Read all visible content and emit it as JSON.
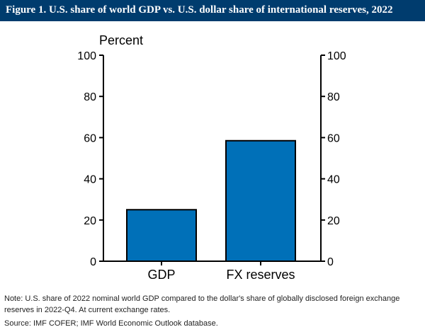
{
  "figure": {
    "title": "Figure 1. U.S. share of world GDP vs. U.S. dollar share of international reserves, 2022",
    "note": "Note: U.S. share of 2022 nominal world GDP compared to the dollar's share of globally disclosed foreign exchange reserves in 2022-Q4. At current exchange rates.",
    "source": "Source: IMF COFER; IMF World Economic Outlook database."
  },
  "colors": {
    "header_bg": "#003c6e",
    "bar_fill": "#0070b8",
    "bar_stroke": "#000000"
  },
  "chart_data": {
    "type": "bar",
    "title": "",
    "unit_label": "Percent",
    "categories": [
      "GDP",
      "FX reserves"
    ],
    "values": [
      25,
      58.5
    ],
    "ylim": [
      0,
      100
    ],
    "yticks": [
      0,
      20,
      40,
      60,
      80,
      100
    ],
    "ytick_labels": [
      "0",
      "20",
      "40",
      "60",
      "80",
      "100"
    ],
    "y_axis_both_sides": true,
    "grid": false,
    "legend": "none"
  }
}
